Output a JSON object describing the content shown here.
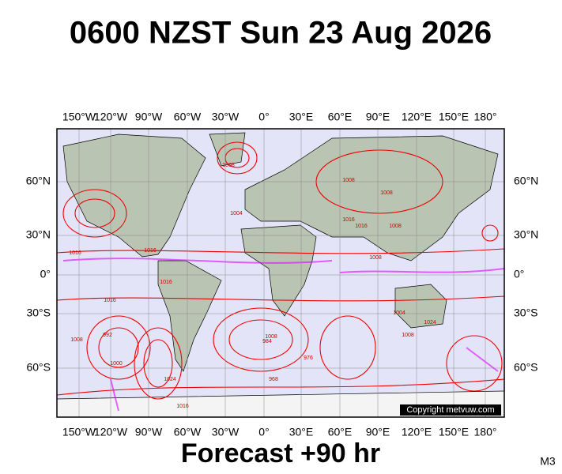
{
  "title": "0600 NZST Sun 23 Aug 2026",
  "lon_labels": [
    "150°W",
    "120°W",
    "90°W",
    "60°W",
    "30°W",
    "0°",
    "30°E",
    "60°E",
    "90°E",
    "120°E",
    "150°E",
    "180°"
  ],
  "lat_labels": [
    "60°N",
    "30°N",
    "0°",
    "30°S",
    "60°S"
  ],
  "isobar_labels": [
    "1008",
    "1004",
    "1016",
    "1008",
    "1008",
    "1016",
    "1008",
    "1008",
    "1004",
    "1024",
    "1008",
    "1016",
    "1016",
    "1008",
    "1000",
    "992",
    "984",
    "1008",
    "976",
    "968",
    "1024",
    "1016",
    "1016",
    "1016"
  ],
  "copyright": "Copyright metvuw.com",
  "footer": "Forecast +90 hr",
  "model_code": "M3"
}
